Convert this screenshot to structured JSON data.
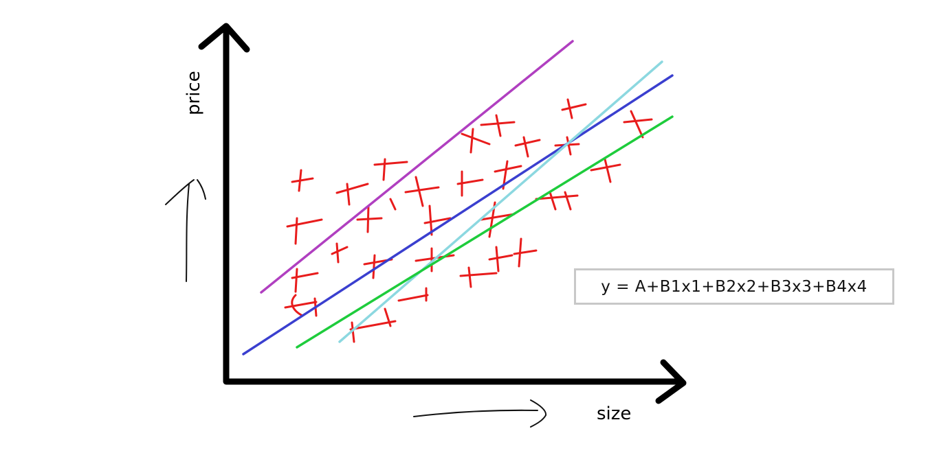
{
  "diagram": {
    "y_axis_label": "price",
    "x_axis_label": "size",
    "equation": "y = A+B1x1+B2x2+B3x3+B4x4"
  },
  "colors": {
    "axis": "#000000",
    "marks": "#e81c1c",
    "line_purple": "#b03fc0",
    "line_blue": "#3a3fcf",
    "line_cyan": "#8cd8e0",
    "line_green": "#1ecc3c",
    "box_border": "#c8c8c8"
  },
  "icons": [
    "up-arrow-icon",
    "right-arrow-icon"
  ]
}
